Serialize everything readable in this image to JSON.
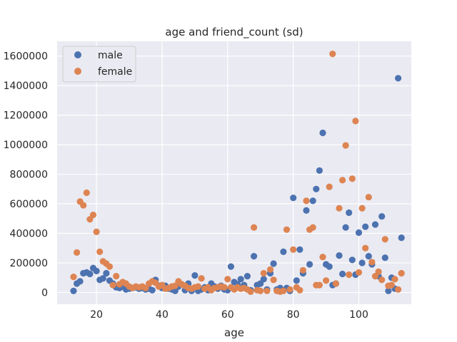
{
  "chart_data": {
    "type": "scatter",
    "title": "age and friend_count (sd)",
    "xlabel": "age",
    "ylabel": "",
    "xlim": [
      8,
      116
    ],
    "ylim": [
      -80000,
      1700000
    ],
    "xticks": [
      20,
      40,
      60,
      80,
      100
    ],
    "yticks": [
      0,
      200000,
      400000,
      600000,
      800000,
      1000000,
      1200000,
      1400000,
      1600000
    ],
    "grid": true,
    "legend": "top-left",
    "series": [
      {
        "name": "male",
        "color": "#4C72B0",
        "points": [
          [
            13,
            10000
          ],
          [
            14,
            60000
          ],
          [
            15,
            75000
          ],
          [
            16,
            130000
          ],
          [
            17,
            135000
          ],
          [
            18,
            125000
          ],
          [
            19,
            165000
          ],
          [
            20,
            145000
          ],
          [
            21,
            85000
          ],
          [
            22,
            95000
          ],
          [
            23,
            130000
          ],
          [
            24,
            80000
          ],
          [
            25,
            60000
          ],
          [
            26,
            35000
          ],
          [
            27,
            30000
          ],
          [
            28,
            40000
          ],
          [
            29,
            20000
          ],
          [
            30,
            25000
          ],
          [
            31,
            30000
          ],
          [
            32,
            35000
          ],
          [
            33,
            25000
          ],
          [
            34,
            30000
          ],
          [
            35,
            20000
          ],
          [
            36,
            25000
          ],
          [
            37,
            15000
          ],
          [
            38,
            85000
          ],
          [
            39,
            45000
          ],
          [
            40,
            30000
          ],
          [
            41,
            45000
          ],
          [
            42,
            25000
          ],
          [
            43,
            20000
          ],
          [
            44,
            10000
          ],
          [
            45,
            40000
          ],
          [
            46,
            55000
          ],
          [
            47,
            15000
          ],
          [
            48,
            60000
          ],
          [
            49,
            10000
          ],
          [
            50,
            115000
          ],
          [
            51,
            10000
          ],
          [
            52,
            20000
          ],
          [
            53,
            35000
          ],
          [
            54,
            15000
          ],
          [
            55,
            60000
          ],
          [
            56,
            40000
          ],
          [
            57,
            25000
          ],
          [
            58,
            45000
          ],
          [
            59,
            20000
          ],
          [
            60,
            15000
          ],
          [
            61,
            175000
          ],
          [
            62,
            70000
          ],
          [
            63,
            55000
          ],
          [
            64,
            90000
          ],
          [
            65,
            50000
          ],
          [
            66,
            110000
          ],
          [
            67,
            15000
          ],
          [
            68,
            245000
          ],
          [
            69,
            50000
          ],
          [
            70,
            60000
          ],
          [
            71,
            90000
          ],
          [
            72,
            20000
          ],
          [
            73,
            130000
          ],
          [
            74,
            195000
          ],
          [
            75,
            20000
          ],
          [
            76,
            30000
          ],
          [
            77,
            275000
          ],
          [
            78,
            30000
          ],
          [
            79,
            10000
          ],
          [
            80,
            640000
          ],
          [
            81,
            80000
          ],
          [
            82,
            290000
          ],
          [
            83,
            130000
          ],
          [
            84,
            555000
          ],
          [
            85,
            190000
          ],
          [
            86,
            620000
          ],
          [
            87,
            700000
          ],
          [
            88,
            825000
          ],
          [
            89,
            1080000
          ],
          [
            90,
            190000
          ],
          [
            91,
            175000
          ],
          [
            92,
            50000
          ],
          [
            93,
            60000
          ],
          [
            94,
            250000
          ],
          [
            95,
            125000
          ],
          [
            96,
            440000
          ],
          [
            97,
            540000
          ],
          [
            98,
            220000
          ],
          [
            99,
            120000
          ],
          [
            100,
            405000
          ],
          [
            101,
            200000
          ],
          [
            102,
            445000
          ],
          [
            103,
            245000
          ],
          [
            104,
            190000
          ],
          [
            105,
            460000
          ],
          [
            106,
            110000
          ],
          [
            107,
            515000
          ],
          [
            108,
            235000
          ],
          [
            109,
            10000
          ],
          [
            110,
            100000
          ],
          [
            111,
            25000
          ],
          [
            112,
            1450000
          ],
          [
            113,
            370000
          ]
        ]
      },
      {
        "name": "female",
        "color": "#DD8452",
        "points": [
          [
            13,
            105000
          ],
          [
            14,
            270000
          ],
          [
            15,
            615000
          ],
          [
            16,
            590000
          ],
          [
            17,
            675000
          ],
          [
            18,
            495000
          ],
          [
            19,
            525000
          ],
          [
            20,
            410000
          ],
          [
            21,
            275000
          ],
          [
            22,
            210000
          ],
          [
            23,
            195000
          ],
          [
            24,
            175000
          ],
          [
            25,
            50000
          ],
          [
            26,
            110000
          ],
          [
            27,
            55000
          ],
          [
            28,
            70000
          ],
          [
            29,
            60000
          ],
          [
            30,
            40000
          ],
          [
            31,
            30000
          ],
          [
            32,
            40000
          ],
          [
            33,
            35000
          ],
          [
            34,
            40000
          ],
          [
            35,
            30000
          ],
          [
            36,
            60000
          ],
          [
            37,
            75000
          ],
          [
            38,
            65000
          ],
          [
            39,
            40000
          ],
          [
            40,
            50000
          ],
          [
            41,
            25000
          ],
          [
            42,
            30000
          ],
          [
            43,
            40000
          ],
          [
            44,
            45000
          ],
          [
            45,
            75000
          ],
          [
            46,
            55000
          ],
          [
            47,
            45000
          ],
          [
            48,
            30000
          ],
          [
            49,
            25000
          ],
          [
            50,
            35000
          ],
          [
            51,
            40000
          ],
          [
            52,
            95000
          ],
          [
            53,
            25000
          ],
          [
            54,
            35000
          ],
          [
            55,
            15000
          ],
          [
            56,
            30000
          ],
          [
            57,
            35000
          ],
          [
            58,
            40000
          ],
          [
            59,
            35000
          ],
          [
            60,
            90000
          ],
          [
            61,
            35000
          ],
          [
            62,
            20000
          ],
          [
            63,
            35000
          ],
          [
            64,
            25000
          ],
          [
            65,
            30000
          ],
          [
            66,
            20000
          ],
          [
            67,
            5000
          ],
          [
            68,
            440000
          ],
          [
            69,
            15000
          ],
          [
            70,
            10000
          ],
          [
            71,
            130000
          ],
          [
            72,
            10000
          ],
          [
            73,
            155000
          ],
          [
            74,
            85000
          ],
          [
            75,
            10000
          ],
          [
            76,
            5000
          ],
          [
            77,
            10000
          ],
          [
            78,
            425000
          ],
          [
            79,
            20000
          ],
          [
            80,
            290000
          ],
          [
            81,
            35000
          ],
          [
            82,
            15000
          ],
          [
            83,
            150000
          ],
          [
            84,
            620000
          ],
          [
            85,
            425000
          ],
          [
            86,
            440000
          ],
          [
            87,
            50000
          ],
          [
            88,
            50000
          ],
          [
            89,
            240000
          ],
          [
            90,
            80000
          ],
          [
            91,
            715000
          ],
          [
            92,
            1615000
          ],
          [
            93,
            60000
          ],
          [
            94,
            570000
          ],
          [
            95,
            760000
          ],
          [
            96,
            995000
          ],
          [
            97,
            120000
          ],
          [
            98,
            770000
          ],
          [
            99,
            1160000
          ],
          [
            100,
            135000
          ],
          [
            101,
            570000
          ],
          [
            102,
            300000
          ],
          [
            103,
            645000
          ],
          [
            104,
            205000
          ],
          [
            105,
            110000
          ],
          [
            106,
            140000
          ],
          [
            107,
            85000
          ],
          [
            108,
            360000
          ],
          [
            109,
            45000
          ],
          [
            110,
            50000
          ],
          [
            111,
            90000
          ],
          [
            112,
            20000
          ],
          [
            113,
            130000
          ]
        ]
      }
    ]
  }
}
